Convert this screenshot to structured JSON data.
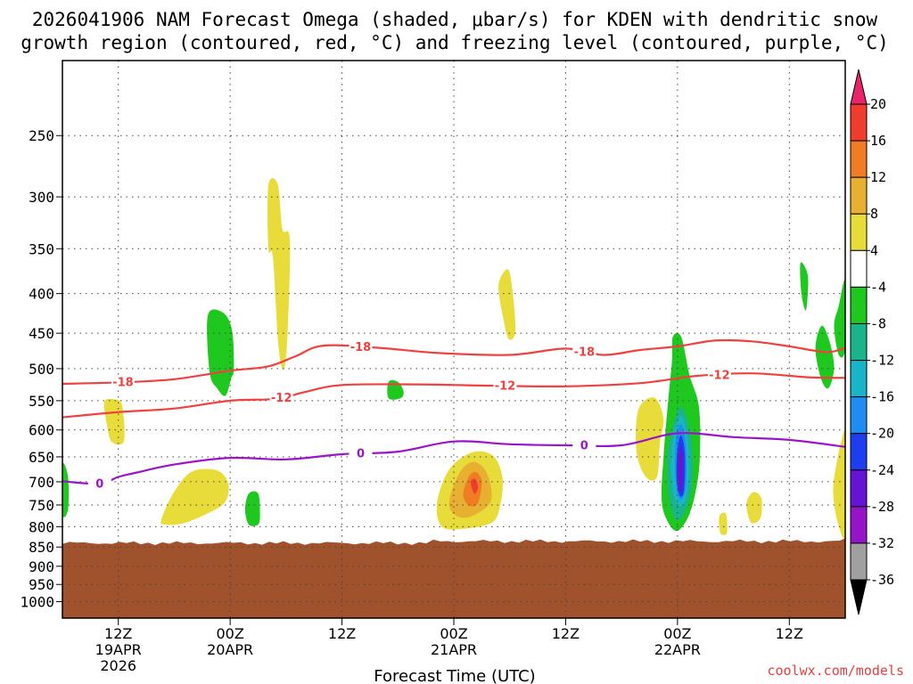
{
  "chart_data": {
    "type": "heatmap",
    "title_line1": "2026041906 NAM Forecast Omega (shaded, μbar/s) for KDEN with dendritic snow",
    "title_line2": "growth region (contoured, red, °C) and freezing level (contoured, purple, °C)",
    "xlabel": "Forecast Time (UTC)",
    "ylabel": "",
    "watermark": "coolwx.com/models",
    "x_range_hours": [
      0,
      84
    ],
    "y_axis": "pressure (hPa), log scale",
    "ylim": [
      1050,
      200
    ],
    "y_ticks": [
      250,
      300,
      350,
      400,
      450,
      500,
      550,
      600,
      650,
      700,
      750,
      800,
      850,
      900,
      950,
      1000
    ],
    "x_ticks": [
      {
        "hour": 6,
        "lines": [
          "12Z",
          "19APR",
          "2026"
        ]
      },
      {
        "hour": 18,
        "lines": [
          "00Z",
          "20APR"
        ]
      },
      {
        "hour": 30,
        "lines": [
          "12Z"
        ]
      },
      {
        "hour": 42,
        "lines": [
          "00Z",
          "21APR"
        ]
      },
      {
        "hour": 54,
        "lines": [
          "12Z"
        ]
      },
      {
        "hour": 66,
        "lines": [
          "00Z",
          "22APR"
        ]
      },
      {
        "hour": 78,
        "lines": [
          "12Z"
        ]
      }
    ],
    "colorbar": {
      "labels": [
        "20",
        "16",
        "12",
        "8",
        "4",
        "-4",
        "-8",
        "-12",
        "-16",
        "-20",
        "-24",
        "-28",
        "-32",
        "-36"
      ],
      "colors": [
        "#e8246a",
        "#f03c2e",
        "#f07d24",
        "#e8b030",
        "#e8dc3a",
        "#ffffff",
        "#1ec81e",
        "#1ab48a",
        "#18b4c8",
        "#1e8cf0",
        "#1e3cf0",
        "#6414d2",
        "#9614c8",
        "#a0a0a0",
        "#000000"
      ]
    },
    "terrain": {
      "surface_pressure_hpa": 840,
      "color": "#a0522d"
    },
    "series": [
      {
        "name": "-18 °C",
        "color": "#f04040",
        "label": "-18",
        "points": [
          [
            0,
            523
          ],
          [
            6,
            521
          ],
          [
            12,
            516
          ],
          [
            18,
            503
          ],
          [
            22,
            497
          ],
          [
            25,
            482
          ],
          [
            28,
            467
          ],
          [
            34,
            470
          ],
          [
            40,
            477
          ],
          [
            48,
            480
          ],
          [
            54,
            471
          ],
          [
            58,
            480
          ],
          [
            62,
            473
          ],
          [
            66,
            468
          ],
          [
            70,
            460
          ],
          [
            74,
            461
          ],
          [
            78,
            468
          ],
          [
            82,
            476
          ],
          [
            84,
            470
          ]
        ],
        "label_hours": [
          6.5,
          32,
          56
        ]
      },
      {
        "name": "-12 °C",
        "color": "#f04040",
        "label": "-12",
        "points": [
          [
            0,
            578
          ],
          [
            6,
            569
          ],
          [
            12,
            563
          ],
          [
            18,
            550
          ],
          [
            23,
            547
          ],
          [
            26,
            536
          ],
          [
            30,
            525
          ],
          [
            38,
            524
          ],
          [
            46,
            526
          ],
          [
            54,
            527
          ],
          [
            62,
            522
          ],
          [
            68,
            511
          ],
          [
            74,
            507
          ],
          [
            80,
            513
          ],
          [
            84,
            514
          ]
        ],
        "label_hours": [
          23.5,
          47.5,
          70.5
        ]
      },
      {
        "name": "0 °C",
        "color": "#9b14c8",
        "label": "0",
        "points": [
          [
            0,
            699
          ],
          [
            4,
            704
          ],
          [
            6,
            690
          ],
          [
            8,
            681
          ],
          [
            12,
            665
          ],
          [
            18,
            652
          ],
          [
            24,
            655
          ],
          [
            30,
            645
          ],
          [
            36,
            640
          ],
          [
            42,
            621
          ],
          [
            48,
            626
          ],
          [
            54,
            628
          ],
          [
            60,
            628
          ],
          [
            66,
            606
          ],
          [
            72,
            613
          ],
          [
            78,
            618
          ],
          [
            84,
            631
          ]
        ],
        "label_hours": [
          4,
          32,
          56
        ]
      }
    ],
    "omega_regions": [
      {
        "value": 6,
        "color": "#e8dc3a",
        "points": [
          [
            22.1,
            290
          ],
          [
            23.1,
            289
          ],
          [
            23.6,
            330
          ],
          [
            24.4,
            340
          ],
          [
            24.2,
            440
          ],
          [
            23.8,
            500
          ],
          [
            23.2,
            470
          ],
          [
            22.6,
            360
          ],
          [
            22.1,
            350
          ]
        ]
      },
      {
        "value": 6,
        "color": "#e8dc3a",
        "points": [
          [
            4.5,
            552
          ],
          [
            5.6,
            548
          ],
          [
            6.4,
            558
          ],
          [
            6.6,
            620
          ],
          [
            5.3,
            622
          ],
          [
            4.8,
            593
          ]
        ]
      },
      {
        "value": 6,
        "color": "#e8dc3a",
        "points": [
          [
            10.6,
            785
          ],
          [
            11.8,
            728
          ],
          [
            13.8,
            680
          ],
          [
            16.6,
            677
          ],
          [
            17.8,
            705
          ],
          [
            17.4,
            745
          ],
          [
            15.2,
            773
          ],
          [
            12.8,
            793
          ],
          [
            11.0,
            795
          ]
        ]
      },
      {
        "value": 6,
        "color": "#e8dc3a",
        "points": [
          [
            40.7,
            800
          ],
          [
            40.2,
            745
          ],
          [
            41.5,
            675
          ],
          [
            44.0,
            641
          ],
          [
            46.2,
            648
          ],
          [
            47.2,
            690
          ],
          [
            47.0,
            748
          ],
          [
            46.1,
            790
          ],
          [
            43.0,
            805
          ]
        ]
      },
      {
        "value": 6,
        "color": "#e8dc3a",
        "points": [
          [
            46.8,
            390
          ],
          [
            47.8,
            372
          ],
          [
            48.3,
            397
          ],
          [
            48.6,
            447
          ],
          [
            47.9,
            458
          ],
          [
            47.3,
            430
          ]
        ]
      },
      {
        "value": 6,
        "color": "#e8dc3a",
        "points": [
          [
            61.8,
            565
          ],
          [
            63.5,
            545
          ],
          [
            64.5,
            580
          ],
          [
            64.1,
            625
          ],
          [
            63.8,
            690
          ],
          [
            62.6,
            690
          ],
          [
            61.6,
            640
          ]
        ]
      },
      {
        "value": 6,
        "color": "#e8dc3a",
        "points": [
          [
            73.4,
            748
          ],
          [
            74.1,
            722
          ],
          [
            75.0,
            735
          ],
          [
            74.9,
            780
          ],
          [
            73.9,
            790
          ]
        ]
      },
      {
        "value": 6,
        "color": "#e8dc3a",
        "points": [
          [
            83.1,
            660
          ],
          [
            83.6,
            620
          ],
          [
            84.0,
            612
          ],
          [
            84.0,
            815
          ],
          [
            83.2,
            790
          ],
          [
            82.7,
            720
          ]
        ]
      },
      {
        "value": 6,
        "color": "#e8dc3a",
        "points": [
          [
            70.5,
            775
          ],
          [
            71.2,
            770
          ],
          [
            71.3,
            815
          ],
          [
            70.6,
            815
          ]
        ]
      },
      {
        "value": 10,
        "color": "#e8b030",
        "points": [
          [
            41.5,
            745
          ],
          [
            42.5,
            685
          ],
          [
            44.0,
            660
          ],
          [
            45.5,
            680
          ],
          [
            46.0,
            740
          ],
          [
            44.0,
            775
          ],
          [
            42.3,
            775
          ]
        ]
      },
      {
        "value": 14,
        "color": "#f07d24",
        "points": [
          [
            43.0,
            728
          ],
          [
            43.6,
            690
          ],
          [
            44.4,
            680
          ],
          [
            45.0,
            700
          ],
          [
            44.6,
            745
          ],
          [
            43.7,
            752
          ]
        ]
      },
      {
        "value": 18,
        "color": "#f03c2e",
        "points": [
          [
            43.8,
            700
          ],
          [
            44.3,
            694
          ],
          [
            44.6,
            712
          ],
          [
            44.2,
            725
          ]
        ]
      },
      {
        "value": -6,
        "color": "#1ec81e",
        "points": [
          [
            15.6,
            427
          ],
          [
            17.2,
            423
          ],
          [
            18.2,
            446
          ],
          [
            18.4,
            500
          ],
          [
            18.1,
            515
          ],
          [
            17.5,
            542
          ],
          [
            16.6,
            530
          ],
          [
            15.8,
            505
          ]
        ]
      },
      {
        "value": -6,
        "color": "#1ec81e",
        "points": [
          [
            0,
            666
          ],
          [
            0.6,
            690
          ],
          [
            0.6,
            760
          ],
          [
            0,
            770
          ]
        ]
      },
      {
        "value": -6,
        "color": "#1ec81e",
        "points": [
          [
            20.0,
            725
          ],
          [
            21.0,
            725
          ],
          [
            21.2,
            770
          ],
          [
            21.0,
            795
          ],
          [
            20.0,
            795
          ],
          [
            19.6,
            760
          ]
        ]
      },
      {
        "value": -6,
        "color": "#1ec81e",
        "points": [
          [
            35.0,
            520
          ],
          [
            36.0,
            520
          ],
          [
            36.6,
            535
          ],
          [
            36.3,
            546
          ],
          [
            35.0,
            546
          ]
        ]
      },
      {
        "value": -6,
        "color": "#1ec81e",
        "points": [
          [
            65.5,
            455
          ],
          [
            66.4,
            455
          ],
          [
            67.3,
            510
          ],
          [
            68.3,
            560
          ],
          [
            68.4,
            650
          ],
          [
            68.0,
            715
          ],
          [
            67.2,
            775
          ],
          [
            66.0,
            810
          ],
          [
            65.0,
            790
          ],
          [
            64.3,
            740
          ],
          [
            64.5,
            650
          ],
          [
            65.0,
            550
          ],
          [
            65.4,
            490
          ]
        ]
      },
      {
        "value": -6,
        "color": "#1ec81e",
        "points": [
          [
            79.2,
            365
          ],
          [
            80.0,
            380
          ],
          [
            79.8,
            420
          ],
          [
            79.3,
            400
          ]
        ]
      },
      {
        "value": -6,
        "color": "#1ec81e",
        "points": [
          [
            80.8,
            470
          ],
          [
            81.5,
            440
          ],
          [
            82.4,
            465
          ],
          [
            82.8,
            500
          ],
          [
            82.2,
            530
          ],
          [
            81.4,
            515
          ]
        ]
      },
      {
        "value": -6,
        "color": "#1ec81e",
        "points": [
          [
            82.8,
            440
          ],
          [
            83.3,
            415
          ],
          [
            84.0,
            385
          ],
          [
            84.0,
            470
          ],
          [
            83.3,
            480
          ]
        ]
      },
      {
        "value": -10,
        "color": "#1ab48a",
        "points": [
          [
            65.4,
            600
          ],
          [
            66.4,
            560
          ],
          [
            67.4,
            610
          ],
          [
            67.6,
            690
          ],
          [
            67.0,
            755
          ],
          [
            66.0,
            785
          ],
          [
            65.2,
            745
          ],
          [
            64.9,
            660
          ]
        ]
      },
      {
        "value": -14,
        "color": "#18b4c8",
        "points": [
          [
            65.6,
            610
          ],
          [
            66.4,
            575
          ],
          [
            67.1,
            620
          ],
          [
            67.2,
            700
          ],
          [
            66.6,
            750
          ],
          [
            65.7,
            735
          ],
          [
            65.3,
            665
          ]
        ]
      },
      {
        "value": -18,
        "color": "#1e8cf0",
        "points": [
          [
            65.8,
            620
          ],
          [
            66.4,
            590
          ],
          [
            66.9,
            630
          ],
          [
            66.9,
            710
          ],
          [
            66.3,
            738
          ],
          [
            65.8,
            700
          ]
        ]
      },
      {
        "value": -22,
        "color": "#1e3cf0",
        "points": [
          [
            66.0,
            635
          ],
          [
            66.4,
            610
          ],
          [
            66.8,
            645
          ],
          [
            66.7,
            720
          ],
          [
            66.2,
            728
          ],
          [
            65.9,
            690
          ]
        ]
      },
      {
        "value": -26,
        "color": "#6414d2",
        "points": [
          [
            66.1,
            650
          ],
          [
            66.4,
            630
          ],
          [
            66.6,
            660
          ],
          [
            66.5,
            715
          ],
          [
            66.2,
            718
          ],
          [
            66.1,
            690
          ]
        ]
      }
    ]
  }
}
